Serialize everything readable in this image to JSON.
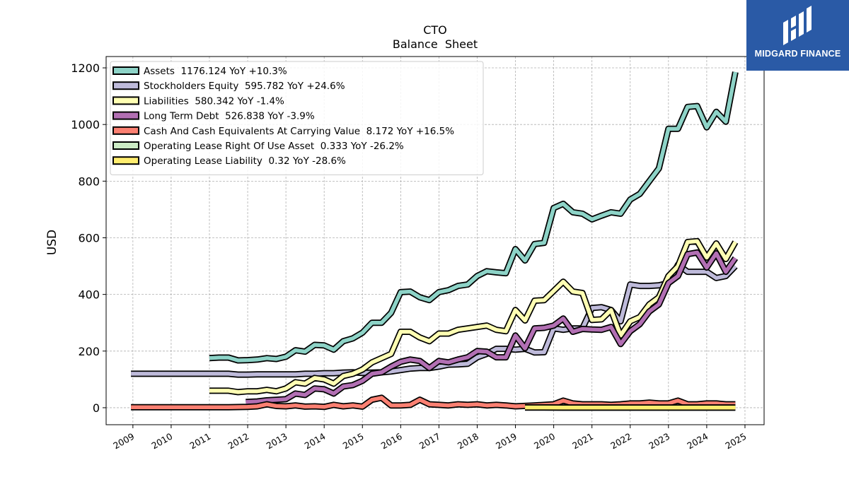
{
  "brand": {
    "name": "MIDGARD FINANCE",
    "background": "#2a5aa6",
    "icon": "midgard-logo-icon"
  },
  "chart_data": {
    "type": "line",
    "title": "CTO",
    "subtitle": "Balance  Sheet",
    "xlabel": "",
    "ylabel": "USD",
    "xlim": [
      2008.3,
      2025.5
    ],
    "ylim": [
      -60,
      1240
    ],
    "x_ticks": [
      "2009",
      "2010",
      "2011",
      "2012",
      "2013",
      "2014",
      "2015",
      "2016",
      "2017",
      "2018",
      "2019",
      "2020",
      "2021",
      "2022",
      "2023",
      "2024",
      "2025"
    ],
    "y_ticks": [
      0,
      200,
      400,
      600,
      800,
      1000,
      1200
    ],
    "grid": true,
    "legend_position": "top-left",
    "series": [
      {
        "name": "Assets  1176.124 YoY +10.3%",
        "color": "#8dd3c7",
        "x": [
          2011.0,
          2011.25,
          2011.5,
          2011.75,
          2012.0,
          2012.25,
          2012.5,
          2012.75,
          2013.0,
          2013.25,
          2013.5,
          2013.75,
          2014.0,
          2014.25,
          2014.5,
          2014.75,
          2015.0,
          2015.25,
          2015.5,
          2015.75,
          2016.0,
          2016.25,
          2016.5,
          2016.75,
          2017.0,
          2017.25,
          2017.5,
          2017.75,
          2018.0,
          2018.25,
          2018.5,
          2018.75,
          2019.0,
          2019.25,
          2019.5,
          2019.75,
          2020.0,
          2020.25,
          2020.5,
          2020.75,
          2021.0,
          2021.25,
          2021.5,
          2021.75,
          2022.0,
          2022.25,
          2022.5,
          2022.75,
          2023.0,
          2023.25,
          2023.5,
          2023.75,
          2024.0,
          2024.25,
          2024.5,
          2024.75
        ],
        "y": [
          175,
          177,
          177,
          167,
          168,
          170,
          175,
          172,
          180,
          203,
          198,
          222,
          220,
          205,
          235,
          245,
          265,
          300,
          300,
          335,
          408,
          410,
          390,
          380,
          408,
          415,
          430,
          435,
          465,
          482,
          478,
          475,
          560,
          520,
          578,
          582,
          705,
          720,
          690,
          685,
          665,
          678,
          690,
          685,
          735,
          755,
          800,
          845,
          985,
          985,
          1062,
          1065,
          990,
          1045,
          1010,
          1185
        ]
      },
      {
        "name": "Stockholders Equity  595.782 YoY +24.6%",
        "color": "#bebada",
        "x": [
          2008.95,
          2009.5,
          2010.0,
          2010.5,
          2011.0,
          2011.25,
          2011.5,
          2011.75,
          2012.0,
          2012.25,
          2012.5,
          2012.75,
          2013.0,
          2013.25,
          2013.5,
          2013.75,
          2014.0,
          2014.25,
          2014.5,
          2014.75,
          2015.0,
          2015.25,
          2015.5,
          2015.75,
          2016.0,
          2016.25,
          2016.5,
          2016.75,
          2017.0,
          2017.25,
          2017.5,
          2017.75,
          2018.0,
          2018.25,
          2018.5,
          2018.75,
          2019.0,
          2019.25,
          2019.5,
          2019.75,
          2020.0,
          2020.25,
          2020.5,
          2020.75,
          2021.0,
          2021.25,
          2021.5,
          2021.75,
          2022.0,
          2022.25,
          2022.5,
          2022.75,
          2023.0,
          2023.25,
          2023.5,
          2023.75,
          2024.0,
          2024.25,
          2024.5,
          2024.75
        ],
        "y": [
          120,
          120,
          120,
          120,
          120,
          120,
          120,
          117,
          117,
          118,
          118,
          118,
          118,
          118,
          120,
          120,
          122,
          122,
          124,
          125,
          123,
          124,
          125,
          128,
          133,
          138,
          140,
          140,
          145,
          152,
          153,
          155,
          178,
          190,
          208,
          208,
          205,
          208,
          195,
          196,
          280,
          275,
          280,
          280,
          352,
          355,
          345,
          305,
          435,
          430,
          430,
          432,
          440,
          505,
          480,
          480,
          480,
          458,
          465,
          500
        ]
      },
      {
        "name": "Liabilities  580.342 YoY -1.4%",
        "color": "#ffffb3",
        "x": [
          2011.0,
          2011.25,
          2011.5,
          2011.75,
          2012.0,
          2012.25,
          2012.5,
          2012.75,
          2013.0,
          2013.25,
          2013.5,
          2013.75,
          2014.0,
          2014.25,
          2014.5,
          2014.75,
          2015.0,
          2015.25,
          2015.5,
          2015.75,
          2016.0,
          2016.25,
          2016.5,
          2016.75,
          2017.0,
          2017.25,
          2017.5,
          2017.75,
          2018.0,
          2018.25,
          2018.5,
          2018.75,
          2019.0,
          2019.25,
          2019.5,
          2019.75,
          2020.0,
          2020.25,
          2020.5,
          2020.75,
          2021.0,
          2021.25,
          2021.5,
          2021.75,
          2022.0,
          2022.25,
          2022.5,
          2022.75,
          2023.0,
          2023.25,
          2023.5,
          2023.75,
          2024.0,
          2024.25,
          2024.5,
          2024.75
        ],
        "y": [
          60,
          60,
          60,
          55,
          58,
          58,
          63,
          58,
          68,
          90,
          85,
          105,
          100,
          85,
          112,
          120,
          135,
          160,
          175,
          190,
          268,
          268,
          248,
          235,
          262,
          262,
          275,
          280,
          285,
          290,
          275,
          270,
          345,
          308,
          378,
          380,
          412,
          445,
          410,
          405,
          310,
          312,
          345,
          255,
          305,
          320,
          365,
          390,
          465,
          500,
          585,
          588,
          530,
          580,
          525,
          585
        ]
      },
      {
        "name": "Long Term Debt  526.838 YoY -3.9%",
        "color": "#b26fb3",
        "x": [
          2011.95,
          2012.25,
          2012.5,
          2012.75,
          2013.0,
          2013.25,
          2013.5,
          2013.75,
          2014.0,
          2014.25,
          2014.5,
          2014.75,
          2015.0,
          2015.25,
          2015.5,
          2015.75,
          2016.0,
          2016.25,
          2016.5,
          2016.75,
          2017.0,
          2017.25,
          2017.5,
          2017.75,
          2018.0,
          2018.25,
          2018.5,
          2018.75,
          2019.0,
          2019.25,
          2019.5,
          2019.75,
          2020.0,
          2020.25,
          2020.5,
          2020.75,
          2021.0,
          2021.25,
          2021.5,
          2021.75,
          2022.0,
          2022.25,
          2022.5,
          2022.75,
          2023.0,
          2023.25,
          2023.5,
          2023.75,
          2024.0,
          2024.25,
          2024.5,
          2024.75
        ],
        "y": [
          20,
          22,
          26,
          28,
          30,
          50,
          45,
          68,
          65,
          50,
          75,
          80,
          95,
          120,
          125,
          145,
          162,
          170,
          165,
          140,
          165,
          160,
          170,
          178,
          200,
          198,
          178,
          178,
          255,
          210,
          280,
          282,
          290,
          315,
          268,
          278,
          276,
          275,
          285,
          225,
          270,
          295,
          340,
          365,
          440,
          465,
          542,
          548,
          495,
          545,
          480,
          528
        ]
      },
      {
        "name": "Cash And Cash Equivalents At Carrying Value  8.172 YoY +16.5%",
        "color": "#fb8072",
        "x": [
          2008.95,
          2009.5,
          2010.0,
          2010.5,
          2011.0,
          2011.5,
          2012.0,
          2012.25,
          2012.5,
          2012.75,
          2013.0,
          2013.25,
          2013.5,
          2013.75,
          2014.0,
          2014.25,
          2014.5,
          2014.75,
          2015.0,
          2015.25,
          2015.5,
          2015.75,
          2016.0,
          2016.25,
          2016.5,
          2016.75,
          2017.0,
          2017.25,
          2017.5,
          2017.75,
          2018.0,
          2018.25,
          2018.5,
          2018.75,
          2019.0,
          2019.5,
          2020.0,
          2020.25,
          2020.5,
          2020.75,
          2021.0,
          2021.25,
          2021.5,
          2021.75,
          2022.0,
          2022.25,
          2022.5,
          2022.75,
          2023.0,
          2023.25,
          2023.5,
          2023.75,
          2024.0,
          2024.25,
          2024.5,
          2024.75
        ],
        "y": [
          2,
          2,
          2,
          2,
          2,
          2,
          3,
          5,
          12,
          6,
          5,
          8,
          4,
          5,
          3,
          10,
          5,
          8,
          4,
          28,
          35,
          8,
          8,
          10,
          28,
          12,
          10,
          8,
          12,
          10,
          12,
          8,
          10,
          8,
          5,
          8,
          12,
          25,
          15,
          12,
          12,
          12,
          10,
          12,
          15,
          15,
          18,
          15,
          15,
          25,
          12,
          12,
          15,
          15,
          12,
          12
        ]
      },
      {
        "name": "Operating Lease Right Of Use Asset  0.333 YoY -26.2%",
        "color": "#ccebc5",
        "x": [
          2019.25,
          2019.75,
          2020.25,
          2020.75,
          2021.25,
          2021.75,
          2022.25,
          2022.75,
          2023.25,
          2023.75,
          2024.25,
          2024.75
        ],
        "y": [
          0.9,
          0.8,
          0.7,
          0.7,
          0.6,
          0.6,
          0.5,
          0.5,
          0.45,
          0.45,
          0.4,
          0.33
        ]
      },
      {
        "name": "Operating Lease Liability  0.32 YoY -28.6%",
        "color": "#ffed6f",
        "x": [
          2019.25,
          2019.75,
          2020.25,
          2020.75,
          2021.25,
          2021.75,
          2022.25,
          2022.75,
          2023.25,
          2023.75,
          2024.25,
          2024.75
        ],
        "y": [
          0.9,
          0.8,
          0.7,
          0.7,
          0.6,
          0.6,
          0.5,
          0.5,
          0.45,
          0.45,
          0.4,
          0.32
        ]
      }
    ]
  }
}
